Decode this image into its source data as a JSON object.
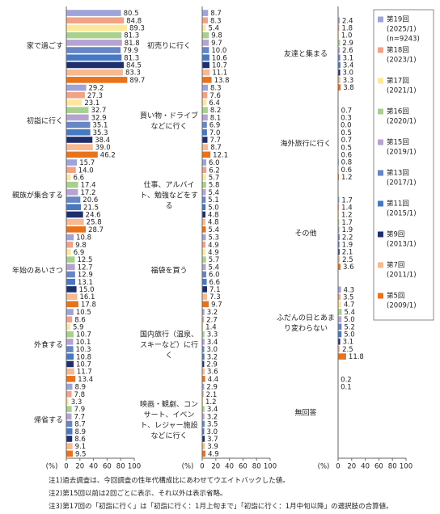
{
  "series_info": [
    {
      "name": "第19回",
      "lines": [
        "(2025/1)",
        "(n=9243)"
      ],
      "color": "#9ea3d9"
    },
    {
      "name": "第18回",
      "lines": [
        "(2023/1)"
      ],
      "color": "#f2a285"
    },
    {
      "name": "第17回",
      "lines": [
        "(2021/1)"
      ],
      "color": "#ffe79a"
    },
    {
      "name": "第16回",
      "lines": [
        "(2020/1)"
      ],
      "color": "#a9d18e"
    },
    {
      "name": "第15回",
      "lines": [
        "(2019/1)"
      ],
      "color": "#b7a3d3"
    },
    {
      "name": "第13回",
      "lines": [
        "(2017/1)"
      ],
      "color": "#6686c4"
    },
    {
      "name": "第11回",
      "lines": [
        "(2015/1)"
      ],
      "color": "#4778c2"
    },
    {
      "name": "第9回",
      "lines": [
        "(2013/1)"
      ],
      "color": "#1f2f6e"
    },
    {
      "name": "第7回",
      "lines": [
        "(2011/1)"
      ],
      "color": "#f7b98f"
    },
    {
      "name": "第5回",
      "lines": [
        "(2009/1)"
      ],
      "color": "#e8731c"
    }
  ],
  "chart_data": [
    {
      "type": "bar",
      "orientation": "horizontal",
      "x_label": "(%)",
      "xlim": [
        0,
        100
      ],
      "xticks": [
        0,
        20,
        40,
        60,
        80,
        100
      ],
      "categories": [
        "家で過ごす",
        "初詣に行く",
        "親族が集合する",
        "年始のあいさつ",
        "外食する",
        "帰省する"
      ],
      "series": [
        {
          "values": [
            80.5,
            29.2,
            15.7,
            10.8,
            10.5,
            8.9
          ],
          "value_labels": [
            "80.5",
            "29.2",
            "15.7",
            "10.8",
            "10.5",
            "8.9"
          ]
        },
        {
          "values": [
            84.8,
            27.3,
            14.0,
            9.8,
            8.6,
            7.8
          ],
          "value_labels": [
            "84.8",
            "27.3",
            "14.0",
            "9.8",
            "8.6",
            "7.8"
          ]
        },
        {
          "values": [
            89.3,
            23.1,
            6.6,
            6.9,
            5.9,
            3.3
          ],
          "value_labels": [
            "89.3",
            "23.1",
            "6.6",
            "6.9",
            "5.9",
            "3.3"
          ]
        },
        {
          "values": [
            81.3,
            32.7,
            17.4,
            12.5,
            10.7,
            7.9
          ],
          "value_labels": [
            "81.3",
            "32.7",
            "17.4",
            "12.5",
            "10.7",
            "7.9"
          ]
        },
        {
          "values": [
            81.8,
            32.9,
            17.2,
            12.7,
            10.1,
            7.7
          ],
          "value_labels": [
            "81.8",
            "32.9",
            "17.2",
            "12.7",
            "10.1",
            "7.7"
          ]
        },
        {
          "values": [
            79.9,
            35.1,
            20.6,
            12.9,
            10.3,
            8.7
          ],
          "value_labels": [
            "79.9",
            "35.1",
            "20.6",
            "12.9",
            "10.3",
            "8.7"
          ]
        },
        {
          "values": [
            81.3,
            35.3,
            21.5,
            13.1,
            10.8,
            8.9
          ],
          "value_labels": [
            "81.3",
            "35.3",
            "21.5",
            "13.1",
            "10.8",
            "8.9"
          ]
        },
        {
          "values": [
            84.5,
            38.4,
            24.6,
            15.0,
            10.7,
            8.6
          ],
          "value_labels": [
            "84.5",
            "38.4",
            "24.6",
            "15.0",
            "10.7",
            "8.6"
          ]
        },
        {
          "values": [
            83.3,
            39.0,
            25.8,
            16.1,
            11.7,
            9.1
          ],
          "value_labels": [
            "83.3",
            "39.0",
            "25.8",
            "16.1",
            "11.7",
            "9.1"
          ]
        },
        {
          "values": [
            89.7,
            46.2,
            28.7,
            17.8,
            13.4,
            9.5
          ],
          "value_labels": [
            "89.7",
            "46.2",
            "28.7",
            "17.8",
            "13.4",
            "9.5"
          ]
        }
      ]
    },
    {
      "type": "bar",
      "orientation": "horizontal",
      "x_label": "(%)",
      "xlim": [
        0,
        100
      ],
      "xticks": [
        0,
        20,
        40,
        60,
        80,
        100
      ],
      "categories": [
        "初売りに行く",
        "買い物・ドライブなどに行く",
        "仕事、アルバイト、勉強などをする",
        "福袋を買う",
        "国内旅行（温泉、スキーなど）に行く",
        "映画・観劇、コンサート、イベント、レジャー施設などに行く"
      ],
      "series": [
        {
          "values": [
            8.7,
            8.3,
            6.0,
            5.3,
            3.2,
            2.9
          ],
          "value_labels": [
            "8.7",
            "8.3",
            "6.0",
            "5.3",
            "3.2",
            "2.9"
          ]
        },
        {
          "values": [
            8.3,
            7.6,
            6.2,
            4.9,
            2.7,
            2.1
          ],
          "value_labels": [
            "8.3",
            "7.6",
            "6.2",
            "4.9",
            "2.7",
            "2.1"
          ]
        },
        {
          "values": [
            5.4,
            6.4,
            5.7,
            4.9,
            1.4,
            1.2
          ],
          "value_labels": [
            "5.4",
            "6.4",
            "5.7",
            "4.9",
            "1.4",
            "1.2"
          ]
        },
        {
          "values": [
            9.8,
            8.2,
            5.8,
            5.7,
            3.3,
            3.4
          ],
          "value_labels": [
            "9.8",
            "8.2",
            "5.8",
            "5.7",
            "3.3",
            "3.4"
          ]
        },
        {
          "values": [
            9.7,
            8.1,
            5.4,
            5.4,
            3.4,
            3.2
          ],
          "value_labels": [
            "9.7",
            "8.1",
            "5.4",
            "5.4",
            "3.4",
            "3.2"
          ]
        },
        {
          "values": [
            10.0,
            6.9,
            5.1,
            6.0,
            3.0,
            3.5
          ],
          "value_labels": [
            "10.0",
            "6.9",
            "5.1",
            "6.0",
            "3.0",
            "3.5"
          ]
        },
        {
          "values": [
            10.6,
            7.0,
            5.0,
            6.6,
            3.2,
            3.0
          ],
          "value_labels": [
            "10.6",
            "7.0",
            "5.0",
            "6.6",
            "3.2",
            "3.0"
          ]
        },
        {
          "values": [
            10.7,
            7.7,
            4.8,
            7.1,
            2.9,
            3.7
          ],
          "value_labels": [
            "10.7",
            "7.7",
            "4.8",
            "7.1",
            "2.9",
            "3.7"
          ]
        },
        {
          "values": [
            11.1,
            8.7,
            4.8,
            7.3,
            3.6,
            3.9
          ],
          "value_labels": [
            "11.1",
            "8.7",
            "4.8",
            "7.3",
            "3.6",
            "3.9"
          ]
        },
        {
          "values": [
            13.8,
            12.1,
            5.4,
            9.7,
            4.4,
            4.9
          ],
          "value_labels": [
            "13.8",
            "12.1",
            "5.4",
            "9.7",
            "4.4",
            "4.9"
          ]
        }
      ]
    },
    {
      "type": "bar",
      "orientation": "horizontal",
      "x_label": "(%)",
      "xlim": [
        0,
        100
      ],
      "xticks": [
        0,
        20,
        40,
        60,
        80,
        100
      ],
      "categories": [
        "友達と集まる",
        "海外旅行に行く",
        "その他",
        "ふだんの日とあまり変わらない",
        "無回答"
      ],
      "series": [
        {
          "values": [
            2.4,
            0.7,
            1.7,
            4.3,
            0.2
          ],
          "value_labels": [
            "2.4",
            "0.7",
            "1.7",
            "4.3",
            "0.2"
          ]
        },
        {
          "values": [
            1.8,
            0.3,
            1.4,
            3.5,
            0.1
          ],
          "value_labels": [
            "1.8",
            "0.3",
            "1.4",
            "3.5",
            "0.1"
          ]
        },
        {
          "values": [
            1.0,
            0.0,
            1.2,
            4.7,
            null
          ],
          "value_labels": [
            "1.0",
            "0.0",
            "1.2",
            "4.7",
            null
          ]
        },
        {
          "values": [
            2.9,
            0.5,
            1.7,
            5.4,
            null
          ],
          "value_labels": [
            "2.9",
            "0.5",
            "1.7",
            "5.4",
            null
          ]
        },
        {
          "values": [
            2.6,
            0.7,
            1.9,
            5.0,
            null
          ],
          "value_labels": [
            "2.6",
            "0.7",
            "1.9",
            "5.0",
            null
          ]
        },
        {
          "values": [
            3.1,
            0.5,
            2.2,
            5.2,
            null
          ],
          "value_labels": [
            "3.1",
            "0.5",
            "2.2",
            "5.2",
            null
          ]
        },
        {
          "values": [
            3.4,
            0.6,
            1.9,
            5.0,
            null
          ],
          "value_labels": [
            "3.4",
            "0.6",
            "1.9",
            "5.0",
            null
          ]
        },
        {
          "values": [
            3.0,
            0.8,
            2.1,
            3.1,
            null
          ],
          "value_labels": [
            "3.0",
            "0.8",
            "2.1",
            "3.1",
            null
          ]
        },
        {
          "values": [
            3.3,
            0.6,
            2.5,
            2.5,
            null
          ],
          "value_labels": [
            "3.3",
            "0.6",
            "2.5",
            "2.5",
            null
          ]
        },
        {
          "values": [
            3.8,
            1.2,
            3.6,
            11.8,
            null
          ],
          "value_labels": [
            "3.8",
            "1.2",
            "3.6",
            "11.8",
            null
          ]
        }
      ]
    }
  ],
  "notes": [
    "注1)過去調査は、今回調査の性年代構成比にあわせてウエイトバックした値。",
    "注2)第15回以前は2回ごとに表示、それ以外は表示省略。",
    "注3)第17回の「初詣に行く」は「初詣に行く：1月上旬まで」「初詣に行く：1月中旬以降」の選択肢の合算値。"
  ]
}
